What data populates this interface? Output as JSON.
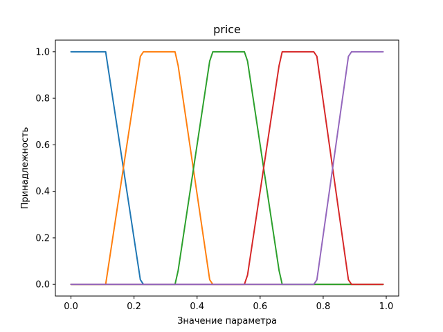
{
  "chart_data": {
    "type": "line",
    "title": "price",
    "xlabel": "Значение параметра",
    "ylabel": "Принадлежность",
    "xlim": [
      -0.0495,
      1.0395
    ],
    "ylim": [
      -0.05,
      1.05
    ],
    "grid": false,
    "x_ticks": [
      {
        "value": 0.0,
        "label": "0.0"
      },
      {
        "value": 0.2,
        "label": "0.2"
      },
      {
        "value": 0.4,
        "label": "0.4"
      },
      {
        "value": 0.6,
        "label": "0.6"
      },
      {
        "value": 0.8,
        "label": "0.8"
      },
      {
        "value": 1.0,
        "label": "1.0"
      }
    ],
    "y_ticks": [
      {
        "value": 0.0,
        "label": "0.0"
      },
      {
        "value": 0.2,
        "label": "0.2"
      },
      {
        "value": 0.4,
        "label": "0.4"
      },
      {
        "value": 0.6,
        "label": "0.6"
      },
      {
        "value": 0.8,
        "label": "0.8"
      },
      {
        "value": 1.0,
        "label": "1.0"
      }
    ],
    "series": [
      {
        "color": "#1f77b4",
        "points": [
          [
            0.0,
            1.0
          ],
          [
            0.11,
            1.0
          ],
          [
            0.22,
            0.02
          ],
          [
            0.23,
            0.0
          ],
          [
            0.99,
            0.0
          ]
        ]
      },
      {
        "color": "#ff7f0e",
        "points": [
          [
            0.0,
            0.0
          ],
          [
            0.11,
            0.0
          ],
          [
            0.22,
            0.98
          ],
          [
            0.23,
            1.0
          ],
          [
            0.33,
            1.0
          ],
          [
            0.34,
            0.94
          ],
          [
            0.44,
            0.02
          ],
          [
            0.45,
            0.0
          ],
          [
            0.99,
            0.0
          ]
        ]
      },
      {
        "color": "#2ca02c",
        "points": [
          [
            0.0,
            0.0
          ],
          [
            0.33,
            0.0
          ],
          [
            0.34,
            0.06
          ],
          [
            0.44,
            0.96
          ],
          [
            0.45,
            1.0
          ],
          [
            0.55,
            1.0
          ],
          [
            0.56,
            0.96
          ],
          [
            0.66,
            0.06
          ],
          [
            0.67,
            0.0
          ],
          [
            0.99,
            0.0
          ]
        ]
      },
      {
        "color": "#d62728",
        "points": [
          [
            0.0,
            0.0
          ],
          [
            0.55,
            0.0
          ],
          [
            0.56,
            0.04
          ],
          [
            0.66,
            0.94
          ],
          [
            0.67,
            1.0
          ],
          [
            0.77,
            1.0
          ],
          [
            0.78,
            0.98
          ],
          [
            0.88,
            0.02
          ],
          [
            0.89,
            0.0
          ],
          [
            0.99,
            0.0
          ]
        ]
      },
      {
        "color": "#9467bd",
        "points": [
          [
            0.0,
            0.0
          ],
          [
            0.77,
            0.0
          ],
          [
            0.78,
            0.02
          ],
          [
            0.88,
            0.98
          ],
          [
            0.89,
            1.0
          ],
          [
            0.99,
            1.0
          ]
        ]
      }
    ]
  }
}
